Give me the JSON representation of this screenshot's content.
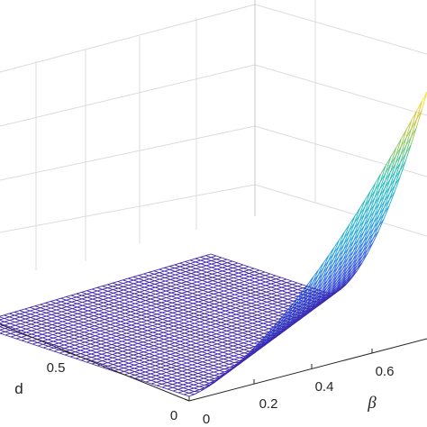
{
  "chart_data": {
    "type": "surface",
    "xlabel": "β",
    "ylabel": "d",
    "zlabel": "",
    "title": "",
    "x_ticks": [
      "0",
      "0.2",
      "0.4",
      "0.6"
    ],
    "y_ticks": [
      "0",
      "0.5"
    ],
    "xlim": [
      0,
      0.8
    ],
    "ylim": [
      0,
      1
    ],
    "grid": true,
    "colormap": "parula",
    "colors": {
      "low": "#3e26a8",
      "mid": "#1dbfb8",
      "high": "#f9fb15",
      "grid": "#dcdcdc",
      "axis": "#262626"
    },
    "surface_description_values": {
      "flat_region_value": 0,
      "peak_region": "large beta, small d"
    }
  }
}
